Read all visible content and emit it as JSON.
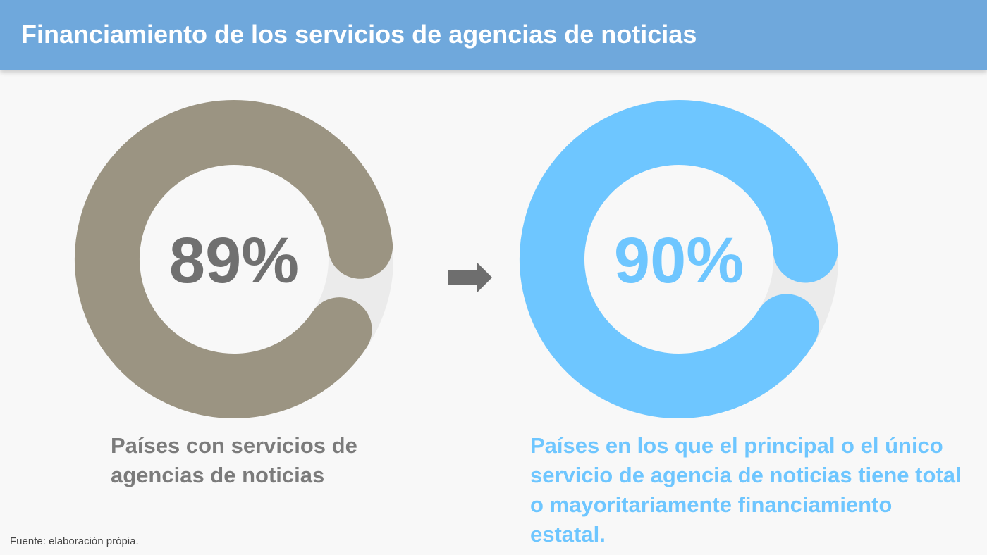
{
  "header": {
    "title": "Financiamiento de los servicios de agencias de noticias"
  },
  "chart_data": [
    {
      "type": "pie",
      "variant": "donut",
      "value_label": "89%",
      "values": [
        89,
        11
      ],
      "categories": [
        "Países con servicios de agencias de noticias",
        ""
      ],
      "color": "#9b9482",
      "remainder_color": "#ebebeb",
      "label_color": "#707070",
      "caption": "Países con servicios de agencias de noticias"
    },
    {
      "type": "pie",
      "variant": "donut",
      "value_label": "90%",
      "values": [
        90,
        10
      ],
      "categories": [
        "Países en los que el principal o el único servicio de agencia de noticias tiene total o mayoritariamente financiamiento estatal.",
        ""
      ],
      "color": "#6ec6ff",
      "remainder_color": "#ebebeb",
      "label_color": "#6ec6ff",
      "caption": "Países en los que el principal o el único servicio de agencia de noticias  tiene total o mayoritariamente financiamiento estatal."
    }
  ],
  "source": "Fuente: elaboración própia."
}
